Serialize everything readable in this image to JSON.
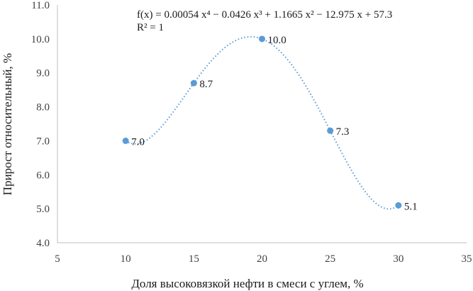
{
  "chart_data": {
    "type": "scatter",
    "xlabel": "Доля высоковязкой нефти в смеси с углем, %",
    "ylabel": "Прирост относительный, %",
    "xlim": [
      5,
      35
    ],
    "ylim": [
      4.0,
      11.0
    ],
    "xticks": [
      "5",
      "10",
      "15",
      "20",
      "25",
      "30",
      "35"
    ],
    "yticks": [
      "4.0",
      "5.0",
      "6.0",
      "7.0",
      "8.0",
      "9.0",
      "10.0",
      "11.0"
    ],
    "grid": "none",
    "legend": "none",
    "marker_color": "#5b9bd5",
    "trendline_color": "#5b9bd5",
    "trendline_style": "dotted",
    "series": [
      {
        "x": [
          10,
          15,
          20,
          25,
          30
        ],
        "y": [
          7.0,
          8.7,
          10.0,
          7.3,
          5.1
        ],
        "labels": [
          "7.0",
          "8.7",
          "10.0",
          "7.3",
          "5.1"
        ]
      }
    ],
    "trendline": {
      "type": "polynomial",
      "degree": 4,
      "coefficients": [
        0.00054,
        -0.0426,
        1.1665,
        -12.975,
        57.3
      ],
      "x_range": [
        10,
        30
      ],
      "equation_text": "f(x) = 0.00054 x⁴ − 0.0426 x³ + 1.1665 x² − 12.975 x + 57.3",
      "r2_text": "R² = 1"
    }
  }
}
